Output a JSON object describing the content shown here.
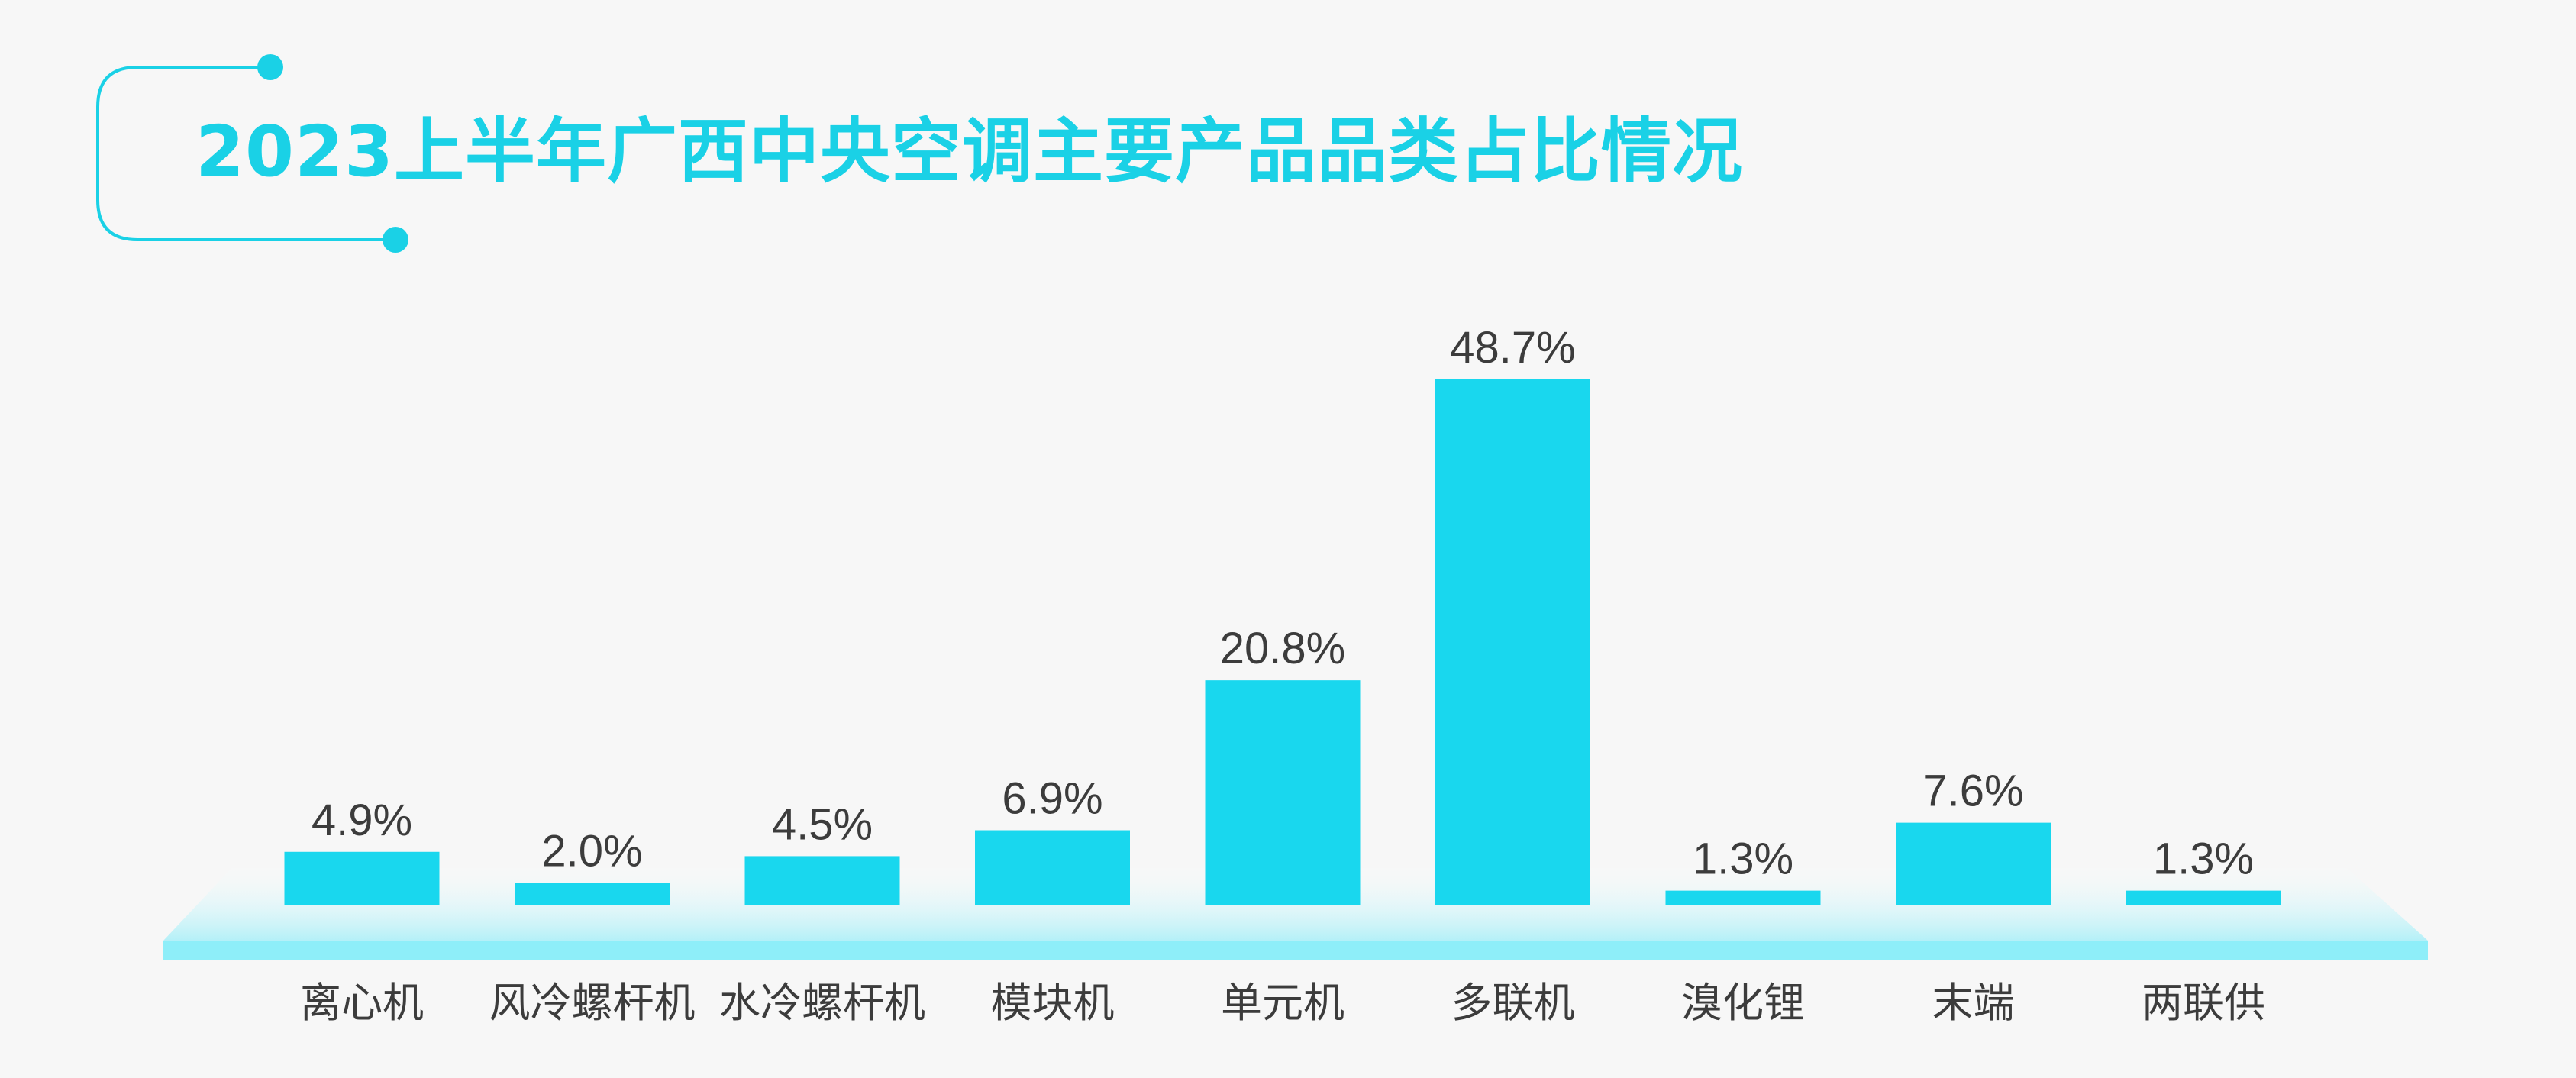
{
  "chart_data": {
    "type": "bar",
    "title": "2023上半年广西中央空调主要产品品类占比情况",
    "categories": [
      "离心机",
      "风冷螺杆机",
      "水冷螺杆机",
      "模块机",
      "单元机",
      "多联机",
      "溴化锂",
      "末端",
      "两联供"
    ],
    "values": [
      4.9,
      2.0,
      4.5,
      6.9,
      20.8,
      48.7,
      1.3,
      7.6,
      1.3
    ],
    "value_labels": [
      "4.9%",
      "2.0%",
      "4.5%",
      "6.9%",
      "20.8%",
      "48.7%",
      "1.3%",
      "7.6%",
      "1.3%"
    ],
    "xlabel": "",
    "ylabel": "",
    "ylim": [
      0,
      48.7
    ],
    "grid": false,
    "legend": "none",
    "colors": {
      "bar": "#19d7ee",
      "platform": "#8eeef9",
      "title": "#1ad1e6",
      "text": "#3c3c3c",
      "background": "#f7f7f7"
    }
  }
}
